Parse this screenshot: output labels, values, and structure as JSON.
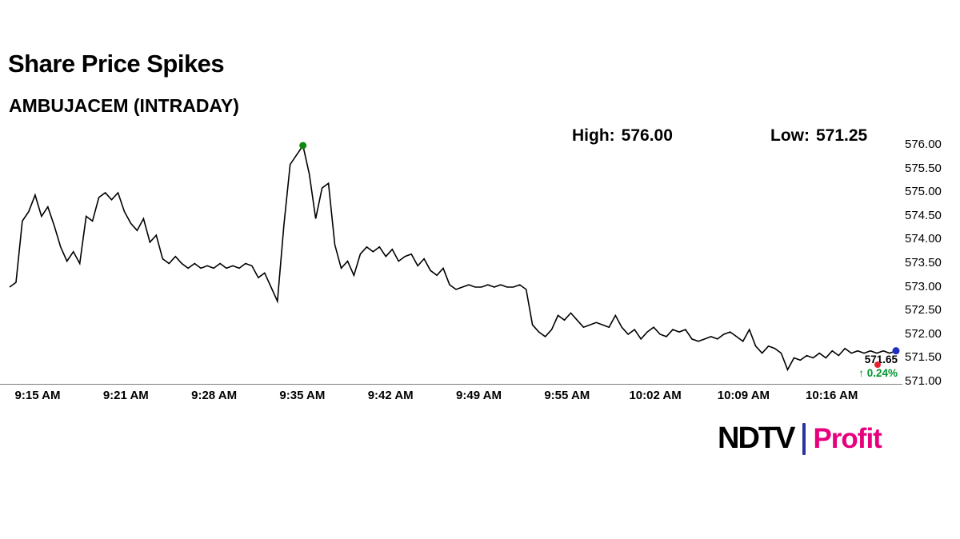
{
  "header": {
    "title": "Share Price Spikes",
    "subtitle": "AMBUJACEM (INTRADAY)"
  },
  "stats": {
    "high_label": "High:",
    "high_value": "576.00",
    "low_label": "Low:",
    "low_value": "571.25"
  },
  "chart_data": {
    "type": "line",
    "title": "AMBUJACEM intraday share price",
    "xlabel": "",
    "ylabel": "",
    "grid": false,
    "legend": false,
    "y_range": [
      571.0,
      576.0
    ],
    "y_ticks": [
      "576.00",
      "575.50",
      "575.00",
      "574.50",
      "574.00",
      "573.50",
      "573.00",
      "572.50",
      "572.00",
      "571.50",
      "571.00"
    ],
    "x_ticks": [
      "9:15 AM",
      "9:21 AM",
      "9:28 AM",
      "9:35 AM",
      "9:42 AM",
      "9:49 AM",
      "9:55 AM",
      "10:02 AM",
      "10:09 AM",
      "10:16 AM"
    ],
    "series": [
      {
        "name": "AMBUJACEM",
        "color": "#000000",
        "values": [
          573.0,
          573.1,
          574.4,
          574.6,
          574.95,
          574.5,
          574.7,
          574.3,
          573.85,
          573.55,
          573.75,
          573.5,
          574.5,
          574.4,
          574.9,
          575.0,
          574.85,
          575.0,
          574.6,
          574.35,
          574.2,
          574.45,
          573.95,
          574.1,
          573.6,
          573.5,
          573.65,
          573.5,
          573.4,
          573.5,
          573.4,
          573.45,
          573.4,
          573.5,
          573.4,
          573.45,
          573.4,
          573.5,
          573.45,
          573.2,
          573.3,
          573.0,
          572.7,
          574.3,
          575.6,
          575.8,
          576.0,
          575.4,
          574.45,
          575.1,
          575.2,
          573.9,
          573.4,
          573.55,
          573.25,
          573.7,
          573.85,
          573.75,
          573.85,
          573.65,
          573.8,
          573.55,
          573.65,
          573.7,
          573.45,
          573.6,
          573.35,
          573.25,
          573.4,
          573.05,
          572.95,
          573.0,
          573.05,
          573.0,
          573.0,
          573.05,
          573.0,
          573.05,
          573.0,
          573.0,
          573.05,
          572.95,
          572.2,
          572.05,
          571.95,
          572.1,
          572.4,
          572.3,
          572.45,
          572.3,
          572.15,
          572.2,
          572.25,
          572.2,
          572.15,
          572.4,
          572.15,
          572.0,
          572.1,
          571.9,
          572.05,
          572.15,
          572.0,
          571.95,
          572.1,
          572.05,
          572.1,
          571.9,
          571.85,
          571.9,
          571.95,
          571.9,
          572.0,
          572.05,
          571.95,
          571.85,
          572.1,
          571.75,
          571.6,
          571.75,
          571.7,
          571.6,
          571.25,
          571.5,
          571.45,
          571.55,
          571.5,
          571.6,
          571.5,
          571.65,
          571.55,
          571.7,
          571.6,
          571.65,
          571.6,
          571.65,
          571.6,
          571.65,
          571.6,
          571.65
        ]
      }
    ],
    "markers": {
      "peak_value": 576.0,
      "peak_color": "#0f8a0f",
      "last_value": 571.65,
      "last_color": "#1f2ec2",
      "red_dot_color": "#e8212d"
    }
  },
  "last_quote": {
    "price": "571.65",
    "change": "↑ 0.24%",
    "change_color": "#00962e"
  },
  "logo": {
    "ndtv": "NDTV",
    "ndtv_color": "#000000",
    "separator_color": "#29339b",
    "profit": "Profit",
    "profit_color": "#e6007e"
  }
}
